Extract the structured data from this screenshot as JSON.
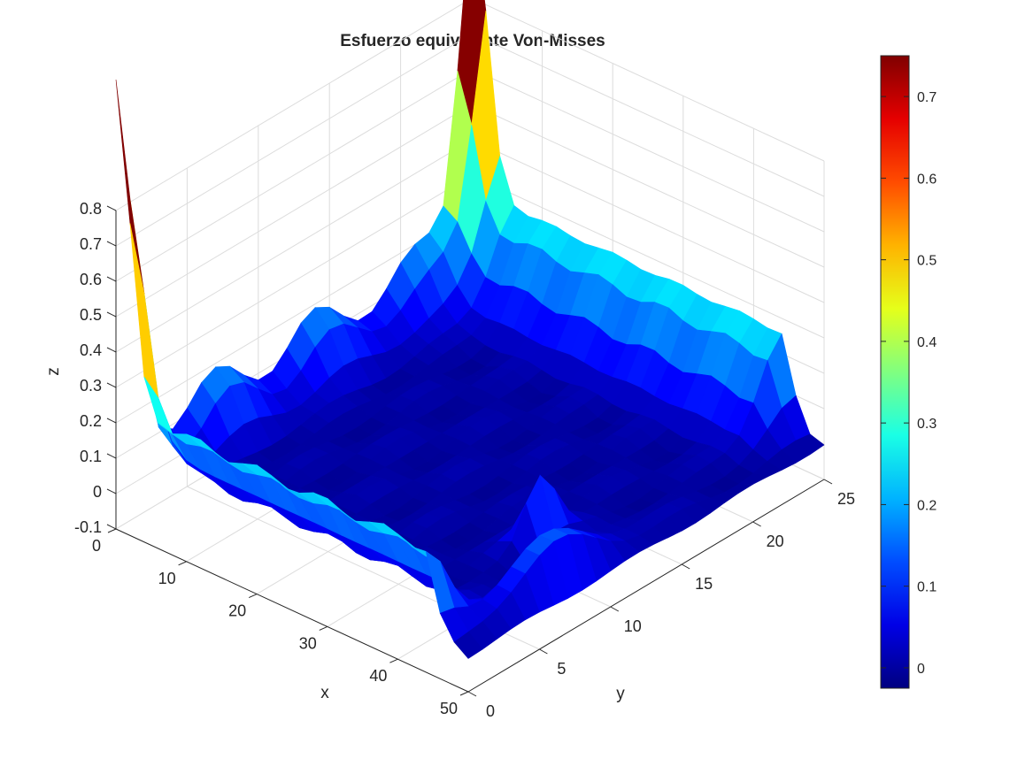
{
  "chart_data": {
    "type": "surface",
    "title": "Esfuerzo equivalente Von-Misses",
    "xlabel": "x",
    "ylabel": "y",
    "zlabel": "z",
    "xlim": [
      0,
      50
    ],
    "ylim": [
      0,
      25
    ],
    "zlim": [
      -0.1,
      0.8
    ],
    "x_ticks": [
      "0",
      "10",
      "20",
      "30",
      "40",
      "50"
    ],
    "y_ticks": [
      "0",
      "5",
      "10",
      "15",
      "20",
      "25"
    ],
    "z_ticks": [
      "-0.1",
      "0",
      "0.1",
      "0.2",
      "0.3",
      "0.4",
      "0.5",
      "0.6",
      "0.7",
      "0.8"
    ],
    "colormap": "jet",
    "colorbar_range": [
      -0.025,
      0.75
    ],
    "colorbar_ticks": [
      "0",
      "0.1",
      "0.2",
      "0.3",
      "0.4",
      "0.5",
      "0.6",
      "0.7"
    ],
    "grid": true,
    "features": [
      {
        "x": 0,
        "y": 25,
        "z": 0.75
      },
      {
        "x": 0,
        "y": 0,
        "z": 0.73
      },
      {
        "x": 47,
        "y": 7,
        "z": 0.28
      },
      {
        "x": 40,
        "y": 10,
        "z": 0.27
      },
      {
        "x": 50,
        "y": 6,
        "z": 0.0
      }
    ]
  }
}
